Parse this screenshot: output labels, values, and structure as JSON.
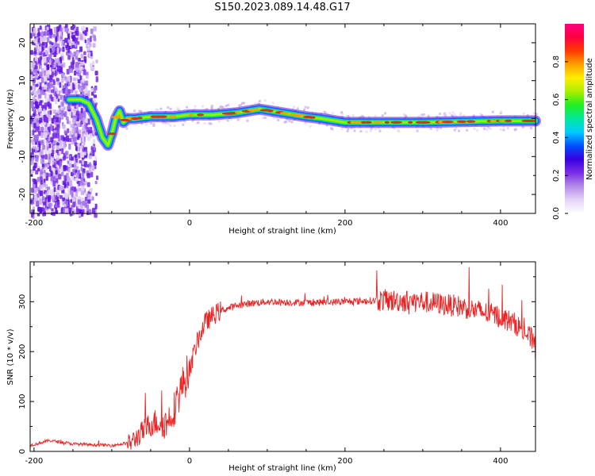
{
  "title": "S150.2023.089.14.48.G17",
  "colors": {
    "snr_line": "#ee2222",
    "ridge": "#d63020",
    "colormap": [
      "#ffffff",
      "#e4d4f6",
      "#b48ae8",
      "#7a2ee6",
      "#3a00e0",
      "#0050ff",
      "#00ccff",
      "#00e89a",
      "#22ee22",
      "#aaee00",
      "#ffee00",
      "#ffa000",
      "#ff3a00",
      "#ff0040",
      "#ff0080"
    ]
  },
  "chart_data": [
    {
      "type": "heatmap",
      "xlabel": "Height of straight line (km)",
      "ylabel": "Frequency (Hz)",
      "xlim": [
        -205,
        445
      ],
      "ylim": [
        -25,
        25
      ],
      "xticks": [
        -200,
        0,
        200,
        400
      ],
      "yticks": [
        -20,
        -10,
        0,
        10,
        20
      ],
      "ridge": {
        "x": [
          -155,
          -140,
          -130,
          -120,
          -112,
          -105,
          -100,
          -95,
          -90,
          -85,
          -80,
          -70,
          -50,
          -20,
          0,
          30,
          60,
          90,
          120,
          150,
          170,
          185,
          200,
          250,
          300,
          350,
          400,
          445
        ],
        "y": [
          5,
          5,
          4,
          0,
          -5,
          -7,
          -4,
          0,
          2,
          -1,
          0,
          0,
          0.5,
          0.5,
          1,
          1,
          1.5,
          2.5,
          1.5,
          0.5,
          0,
          -0.5,
          -1,
          -1,
          -1,
          -0.8,
          -0.6,
          -0.6
        ]
      },
      "colorbar": {
        "label": "Normalized spectral amplitude",
        "range": [
          0,
          1
        ],
        "ticks": [
          "0.0",
          "0.2",
          "0.4",
          "0.6",
          "0.8"
        ]
      }
    },
    {
      "type": "line",
      "xlabel": "Height of straight line (km)",
      "ylabel": "SNR (10 * v/v)",
      "xlim": [
        -205,
        445
      ],
      "ylim": [
        0,
        380
      ],
      "xticks": [
        -200,
        0,
        200,
        400
      ],
      "yticks": [
        0,
        100,
        200,
        300
      ],
      "trend": {
        "x": [
          -205,
          -180,
          -150,
          -100,
          -75,
          -60,
          -50,
          -40,
          -30,
          -20,
          -10,
          0,
          10,
          20,
          30,
          40,
          60,
          80,
          100,
          150,
          200,
          250,
          300,
          350,
          400,
          420,
          430,
          440,
          445
        ],
        "y": [
          12,
          22,
          15,
          12,
          18,
          40,
          55,
          60,
          55,
          85,
          130,
          165,
          220,
          258,
          272,
          282,
          292,
          297,
          300,
          298,
          300,
          303,
          300,
          290,
          270,
          255,
          240,
          225,
          205
        ]
      }
    }
  ]
}
